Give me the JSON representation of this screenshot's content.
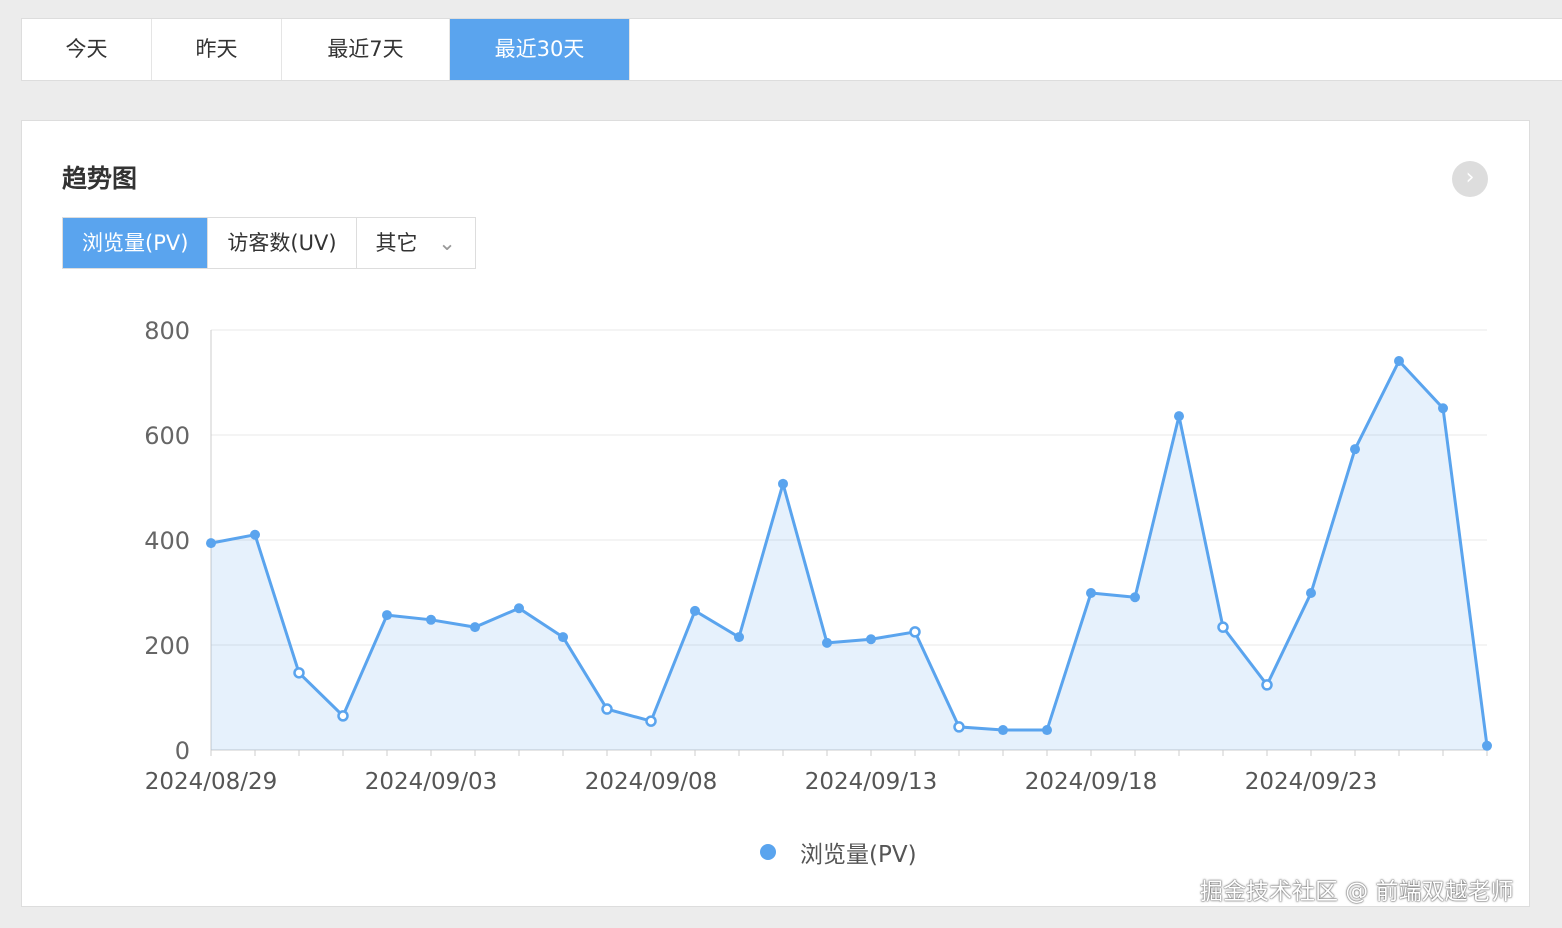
{
  "tabs": [
    "今天",
    "昨天",
    "最近7天",
    "最近30天"
  ],
  "active_tab": 3,
  "card": {
    "title": "趋势图",
    "metrics": [
      "浏览量(PV)",
      "访客数(UV)",
      "其它"
    ]
  },
  "watermark": "掘金技术社区 @ 前端双越老师",
  "chart_data": {
    "type": "area",
    "x_start": "2024/08/29",
    "x_ticklabels": [
      "2024/08/29",
      "2024/09/03",
      "2024/09/08",
      "2024/09/13",
      "2024/09/18",
      "2024/09/23"
    ],
    "y_ticks": [
      0,
      200,
      400,
      600,
      800
    ],
    "ylim": [
      0,
      800
    ],
    "grid": true,
    "legend": "bottom-center",
    "color": "#5aa4ee",
    "series": [
      {
        "name": "浏览量(PV)",
        "values": [
          394,
          410,
          147,
          65,
          257,
          248,
          234,
          270,
          215,
          78,
          55,
          265,
          215,
          507,
          204,
          211,
          225,
          44,
          38,
          38,
          299,
          291,
          636,
          234,
          124,
          299,
          573,
          741,
          651,
          8
        ]
      }
    ]
  }
}
